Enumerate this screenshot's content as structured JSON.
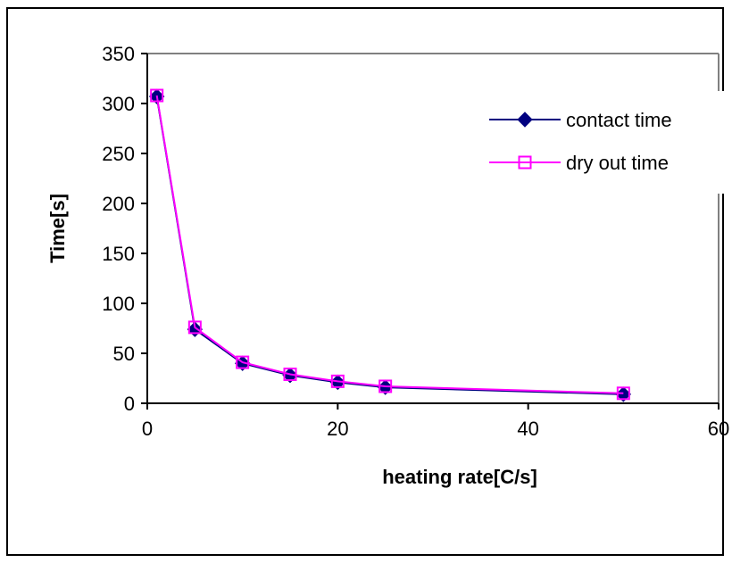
{
  "chart_data": {
    "type": "line",
    "title": "",
    "xlabel": "heating rate[C/s]",
    "ylabel": "Time[s]",
    "xlim": [
      0,
      60
    ],
    "ylim": [
      0,
      350
    ],
    "xticks": [
      0,
      20,
      40,
      60
    ],
    "yticks": [
      0,
      50,
      100,
      150,
      200,
      250,
      300,
      350
    ],
    "grid": false,
    "legend_position": "top-right",
    "series": [
      {
        "name": "contact time",
        "color": "#000080",
        "marker": "filled-diamond",
        "x": [
          1,
          5,
          10,
          15,
          20,
          25,
          50
        ],
        "y": [
          307,
          74,
          40,
          28,
          21,
          16,
          9
        ]
      },
      {
        "name": "dry out time",
        "color": "#ff00ff",
        "marker": "open-square",
        "x": [
          1,
          5,
          10,
          15,
          20,
          25,
          50
        ],
        "y": [
          308,
          76,
          41,
          29,
          22,
          17,
          10
        ]
      }
    ]
  }
}
